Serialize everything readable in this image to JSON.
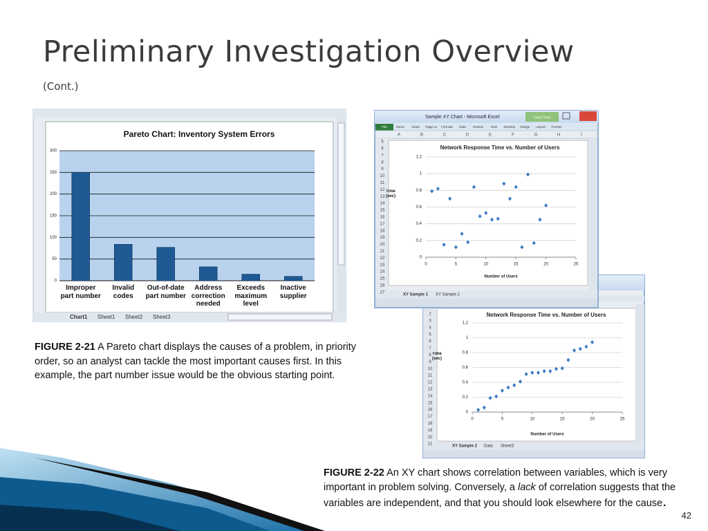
{
  "slide": {
    "title": "Preliminary Investigation Overview",
    "subtitle": "(Cont.)",
    "page_number": "42"
  },
  "captions": [
    {
      "label": "FIGURE 2-21",
      "text": " A Pareto chart displays the causes of a problem, in priority order, so an analyst can tackle the most important causes first. In this example, the part number issue would be the obvious starting point."
    },
    {
      "label": "FIGURE 2-22",
      "text": " An XY chart shows correlation between variables, which is very important in problem solving. Conversely, a ",
      "emphasis": "lack",
      "text_after": " of correlation suggests that the variables are independent, and that you should look elsewhere for the cause",
      "end": "."
    }
  ],
  "windows": [
    {
      "tabs": [
        "Chart1",
        "Sheet1",
        "Sheet2",
        "Sheet3"
      ]
    },
    {
      "title": "Sample XY Chart - Microsoft Excel",
      "context_tab": "Chart Tools",
      "ribbon": [
        "File",
        "Home",
        "Insert",
        "Page La",
        "Formula",
        "Data",
        "Review",
        "View",
        "Develop",
        "Design",
        "Layout",
        "Format"
      ],
      "columns": [
        "A",
        "B",
        "C",
        "D",
        "E",
        "F",
        "G",
        "H",
        "I"
      ],
      "rows": [
        5,
        6,
        7,
        8,
        9,
        10,
        11,
        12,
        13,
        14,
        15,
        16,
        17,
        18,
        19,
        20,
        21,
        22,
        23,
        24,
        25,
        26,
        27
      ],
      "tabs": [
        "XY Sample 1",
        "XY Sample 2"
      ]
    },
    {
      "rows": [
        2,
        3,
        4,
        5,
        6,
        7,
        8,
        9,
        10,
        11,
        12,
        13,
        14,
        15,
        16,
        17,
        18,
        19,
        20,
        21
      ],
      "tabs": [
        "XY Sample 2",
        "Data",
        "Sheet3"
      ]
    }
  ],
  "chart_data": [
    {
      "type": "bar",
      "title": "Pareto Chart:  Inventory System Errors",
      "categories": [
        "Improper part number",
        "Invalid codes",
        "Out-of-date part number",
        "Address correction needed",
        "Exceeds maximum level",
        "Inactive supplier"
      ],
      "values": [
        250,
        84,
        77,
        32,
        15,
        10
      ],
      "color": "#1f5a94",
      "ylim": [
        0,
        300
      ],
      "yticks": [
        0,
        50,
        100,
        150,
        200,
        250,
        300
      ],
      "grid": true
    },
    {
      "type": "scatter",
      "title": "Network Response Time vs. Number of Users",
      "x_label": "Number of Users",
      "y_label": "Time (sec)",
      "x": [
        1,
        2,
        3,
        4,
        5,
        6,
        7,
        8,
        9,
        10,
        11,
        12,
        13,
        14,
        15,
        16,
        17,
        18,
        19,
        20
      ],
      "series": [
        {
          "color": "#3a78c2",
          "values": [
            0.79,
            0.82,
            0.15,
            0.7,
            0.12,
            0.28,
            0.18,
            0.84,
            0.49,
            0.53,
            0.45,
            0.46,
            0.88,
            0.7,
            0.84,
            0.12,
            0.99,
            0.17,
            0.45,
            0.62
          ]
        }
      ],
      "xlim": [
        0,
        25
      ],
      "xticks": [
        0,
        5,
        10,
        15,
        20,
        25
      ],
      "ylim": [
        0,
        1.2
      ],
      "yticks": [
        0,
        0.2,
        0.4,
        0.6,
        0.8,
        1,
        1.2
      ],
      "grid": true
    },
    {
      "type": "scatter",
      "title": "Network Response Time vs. Number of Users",
      "x_label": "Number of Users",
      "y_label": "Time (sec)",
      "x": [
        1,
        2,
        3,
        4,
        5,
        6,
        7,
        8,
        9,
        10,
        11,
        12,
        13,
        14,
        15,
        16,
        17,
        18,
        19,
        20
      ],
      "series": [
        {
          "color": "#3a78c2",
          "values": [
            0.03,
            0.06,
            0.19,
            0.21,
            0.29,
            0.33,
            0.36,
            0.41,
            0.51,
            0.53,
            0.53,
            0.55,
            0.55,
            0.58,
            0.59,
            0.7,
            0.83,
            0.85,
            0.88,
            0.94
          ]
        }
      ],
      "xlim": [
        0,
        25
      ],
      "xticks": [
        0,
        5,
        10,
        15,
        20,
        25
      ],
      "ylim": [
        0,
        1.2
      ],
      "yticks": [
        0,
        0.2,
        0.4,
        0.6,
        0.8,
        1,
        1.2
      ],
      "grid": true
    }
  ]
}
